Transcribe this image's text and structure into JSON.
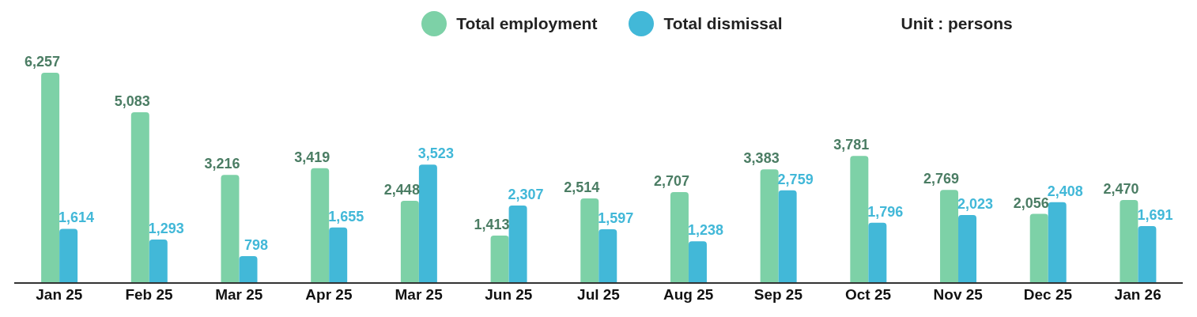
{
  "chart_data": {
    "type": "bar",
    "categories": [
      "Jan 25",
      "Feb 25",
      "Mar 25",
      "Apr 25",
      "Mar 25",
      "Jun 25",
      "Jul 25",
      "Aug 25",
      "Sep 25",
      "Oct 25",
      "Nov 25",
      "Dec 25",
      "Jan 26"
    ],
    "series": [
      {
        "name": "Total employment",
        "color": "#7dd1a7",
        "values": [
          6257,
          5083,
          3216,
          3419,
          2448,
          1413,
          2514,
          2707,
          3383,
          3781,
          2769,
          2056,
          2470
        ],
        "value_labels": [
          "6,257",
          "5,083",
          "3,216",
          "3,419",
          "2,448",
          "1,413",
          "2,514",
          "2,707",
          "3,383",
          "3,781",
          "2,769",
          "2,056",
          "2,470"
        ]
      },
      {
        "name": "Total dismissal",
        "color": "#42b8d8",
        "values": [
          1614,
          1293,
          798,
          1655,
          3523,
          2307,
          1597,
          1238,
          2759,
          1796,
          2023,
          2408,
          1691
        ],
        "value_labels": [
          "1,614",
          "1,293",
          "798",
          "1,655",
          "3,523",
          "2,307",
          "1,597",
          "1,238",
          "2,759",
          "1,796",
          "2,023",
          "2,408",
          "1,691"
        ]
      }
    ],
    "legend": "top",
    "grid": false,
    "annotations": [
      "Unit : persons"
    ]
  }
}
